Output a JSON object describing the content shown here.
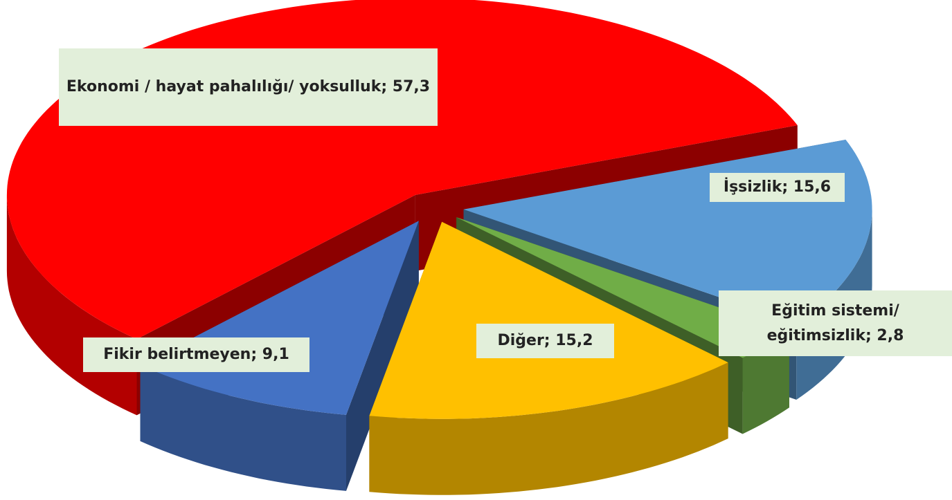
{
  "chart_data": {
    "type": "pie",
    "three_d": true,
    "exploded": true,
    "values": [
      57.3,
      15.6,
      2.8,
      15.2,
      9.1
    ],
    "value_labels": [
      "Ekonomi / hayat pahalılığı/ yoksulluk; 57,3",
      "İşsizlik; 15,6",
      "Eğitim sistemi/ eğitimsizlik; 2,8",
      "Diğer; 15,2",
      "Fikir belirtmeyen; 9,1"
    ],
    "colors": [
      "#ff0000",
      "#5b9bd5",
      "#70ad47",
      "#ffc000",
      "#4472c4"
    ]
  }
}
